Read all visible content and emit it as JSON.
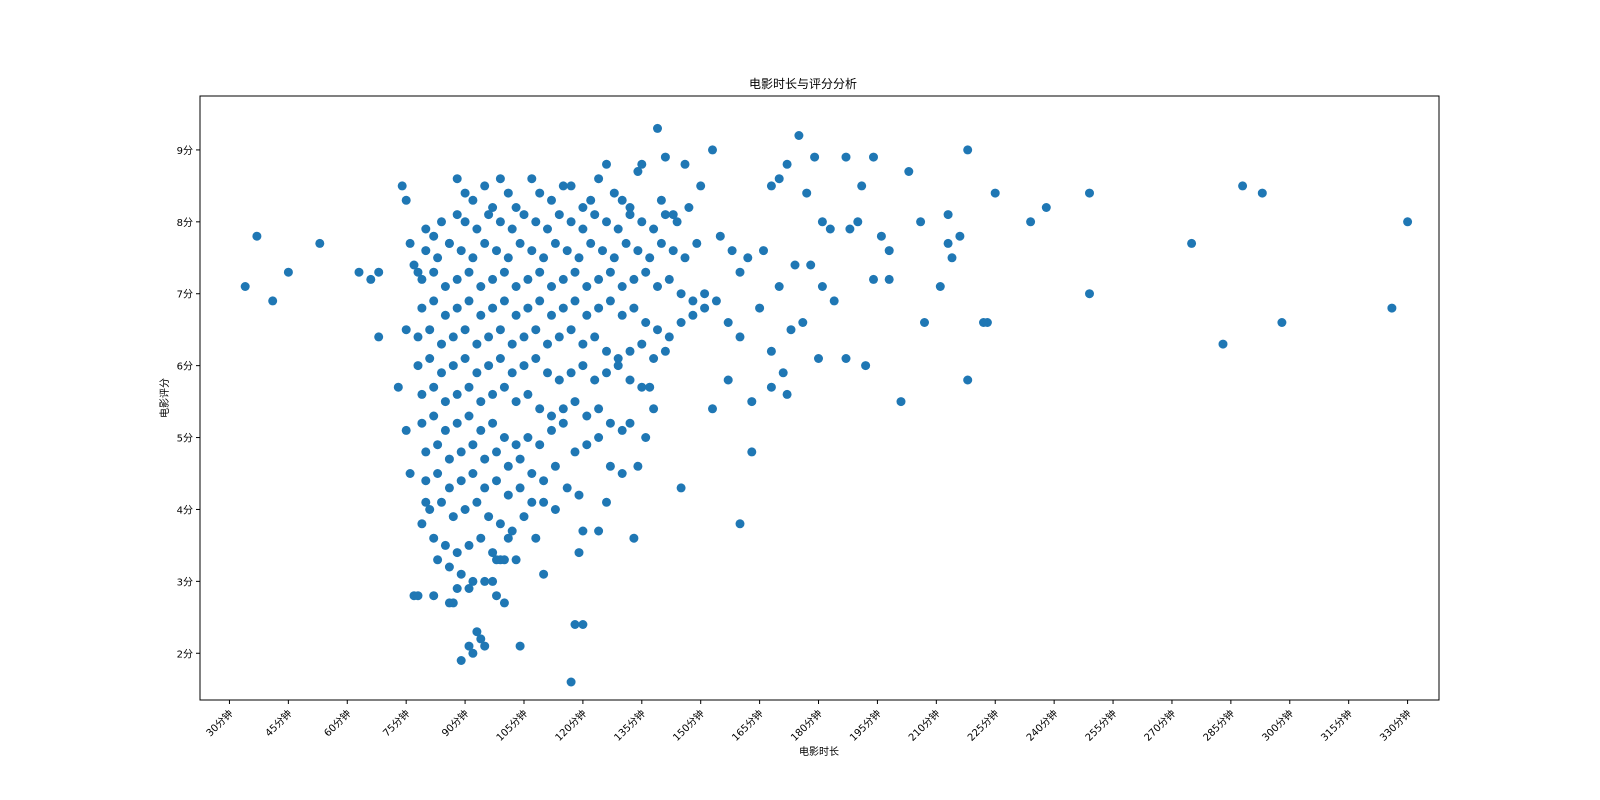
{
  "chart_data": {
    "type": "scatter",
    "title": "电影时长与评分分析",
    "xlabel": "电影时长",
    "ylabel": "电影评分",
    "xlim": [
      22.5,
      338
    ],
    "ylim": [
      1.35,
      9.75
    ],
    "grid": false,
    "legend": "none",
    "marker_color": "#1f77b4",
    "x_ticks": [
      30,
      45,
      60,
      75,
      90,
      105,
      120,
      135,
      150,
      165,
      180,
      195,
      210,
      225,
      240,
      255,
      270,
      285,
      300,
      315,
      330
    ],
    "x_tick_labels": [
      "30分钟",
      "45分钟",
      "60分钟",
      "75分钟",
      "90分钟",
      "105分钟",
      "120分钟",
      "135分钟",
      "150分钟",
      "165分钟",
      "180分钟",
      "195分钟",
      "210分钟",
      "225分钟",
      "240分钟",
      "255分钟",
      "270分钟",
      "285分钟",
      "300分钟",
      "315分钟",
      "330分钟"
    ],
    "y_ticks": [
      2,
      3,
      4,
      5,
      6,
      7,
      8,
      9
    ],
    "y_tick_labels": [
      "2分",
      "3分",
      "4分",
      "5分",
      "6分",
      "7分",
      "8分",
      "9分"
    ],
    "points": [
      [
        34,
        7.1
      ],
      [
        37,
        7.8
      ],
      [
        41,
        6.9
      ],
      [
        45,
        7.3
      ],
      [
        53,
        7.7
      ],
      [
        63,
        7.3
      ],
      [
        66,
        7.2
      ],
      [
        68,
        7.3
      ],
      [
        74,
        8.5
      ],
      [
        75,
        8.3
      ],
      [
        68,
        6.4
      ],
      [
        76,
        7.7
      ],
      [
        77,
        7.4
      ],
      [
        78,
        7.3
      ],
      [
        75,
        6.5
      ],
      [
        73,
        5.7
      ],
      [
        75,
        5.1
      ],
      [
        76,
        4.5
      ],
      [
        77,
        2.8
      ],
      [
        78,
        2.8
      ],
      [
        82,
        2.8
      ],
      [
        80,
        4.1
      ],
      [
        79,
        3.8
      ],
      [
        86,
        2.7
      ],
      [
        87,
        2.7
      ],
      [
        89,
        1.9
      ],
      [
        91,
        2.1
      ],
      [
        92,
        2.0
      ],
      [
        93,
        2.3
      ],
      [
        94,
        2.2
      ],
      [
        95,
        2.1
      ],
      [
        98,
        2.8
      ],
      [
        100,
        2.7
      ],
      [
        104,
        2.1
      ],
      [
        97,
        3.0
      ],
      [
        99,
        3.3
      ],
      [
        101,
        3.6
      ],
      [
        103,
        3.3
      ],
      [
        110,
        3.1
      ],
      [
        118,
        2.4
      ],
      [
        120,
        2.4
      ],
      [
        119,
        3.4
      ],
      [
        120,
        3.7
      ],
      [
        124,
        3.7
      ],
      [
        133,
        3.6
      ],
      [
        126,
        4.1
      ],
      [
        134,
        4.6
      ],
      [
        145,
        4.3
      ],
      [
        160,
        3.8
      ],
      [
        163,
        4.8
      ],
      [
        153,
        5.4
      ],
      [
        157,
        5.8
      ],
      [
        163,
        5.5
      ],
      [
        168,
        5.7
      ],
      [
        117,
        1.6
      ],
      [
        134,
        8.7
      ],
      [
        135,
        8.8
      ],
      [
        139,
        9.3
      ],
      [
        141,
        8.9
      ],
      [
        146,
        8.8
      ],
      [
        153,
        9.0
      ],
      [
        150,
        8.5
      ],
      [
        140,
        8.3
      ],
      [
        143,
        8.1
      ],
      [
        147,
        8.2
      ],
      [
        155,
        7.8
      ],
      [
        158,
        7.6
      ],
      [
        160,
        7.3
      ],
      [
        162,
        7.5
      ],
      [
        166,
        7.6
      ],
      [
        168,
        8.5
      ],
      [
        170,
        8.6
      ],
      [
        172,
        8.8
      ],
      [
        175,
        9.2
      ],
      [
        177,
        8.4
      ],
      [
        179,
        8.9
      ],
      [
        181,
        8.0
      ],
      [
        183,
        7.9
      ],
      [
        187,
        8.9
      ],
      [
        188,
        7.9
      ],
      [
        190,
        8.0
      ],
      [
        191,
        8.5
      ],
      [
        194,
        8.9
      ],
      [
        196,
        7.8
      ],
      [
        198,
        7.6
      ],
      [
        203,
        8.7
      ],
      [
        206,
        8.0
      ],
      [
        211,
        7.1
      ],
      [
        213,
        7.7
      ],
      [
        214,
        7.5
      ],
      [
        216,
        7.8
      ],
      [
        218,
        9.0
      ],
      [
        223,
        6.6
      ],
      [
        225,
        8.4
      ],
      [
        234,
        8.0
      ],
      [
        238,
        8.2
      ],
      [
        249,
        8.4
      ],
      [
        249,
        7.0
      ],
      [
        213,
        8.1
      ],
      [
        207,
        6.6
      ],
      [
        201,
        5.5
      ],
      [
        198,
        7.2
      ],
      [
        194,
        7.2
      ],
      [
        192,
        6.0
      ],
      [
        187,
        6.1
      ],
      [
        184,
        6.9
      ],
      [
        181,
        7.1
      ],
      [
        180,
        6.1
      ],
      [
        176,
        6.6
      ],
      [
        173,
        6.5
      ],
      [
        170,
        7.1
      ],
      [
        165,
        6.8
      ],
      [
        168,
        6.2
      ],
      [
        171,
        5.9
      ],
      [
        172,
        5.6
      ],
      [
        178,
        7.4
      ],
      [
        174,
        7.4
      ],
      [
        218,
        5.8
      ],
      [
        222,
        6.6
      ],
      [
        275,
        7.7
      ],
      [
        283,
        6.3
      ],
      [
        288,
        8.5
      ],
      [
        293,
        8.4
      ],
      [
        298,
        6.6
      ],
      [
        326,
        6.8
      ],
      [
        330,
        8.0
      ],
      [
        88,
        8.6
      ],
      [
        90,
        8.4
      ],
      [
        92,
        8.3
      ],
      [
        95,
        8.5
      ],
      [
        97,
        8.2
      ],
      [
        99,
        8.6
      ],
      [
        101,
        8.4
      ],
      [
        103,
        8.2
      ],
      [
        107,
        8.6
      ],
      [
        109,
        8.4
      ],
      [
        112,
        8.3
      ],
      [
        115,
        8.5
      ],
      [
        117,
        8.5
      ],
      [
        120,
        8.2
      ],
      [
        122,
        8.3
      ],
      [
        124,
        8.6
      ],
      [
        126,
        8.8
      ],
      [
        128,
        8.4
      ],
      [
        130,
        8.3
      ],
      [
        132,
        8.2
      ],
      [
        80,
        7.9
      ],
      [
        82,
        7.8
      ],
      [
        84,
        8.0
      ],
      [
        86,
        7.7
      ],
      [
        88,
        8.1
      ],
      [
        90,
        8.0
      ],
      [
        93,
        7.9
      ],
      [
        96,
        8.1
      ],
      [
        99,
        8.0
      ],
      [
        102,
        7.9
      ],
      [
        105,
        8.1
      ],
      [
        108,
        8.0
      ],
      [
        111,
        7.9
      ],
      [
        114,
        8.1
      ],
      [
        117,
        8.0
      ],
      [
        120,
        7.9
      ],
      [
        123,
        8.1
      ],
      [
        126,
        8.0
      ],
      [
        129,
        7.9
      ],
      [
        132,
        8.1
      ],
      [
        135,
        8.0
      ],
      [
        138,
        7.9
      ],
      [
        141,
        8.1
      ],
      [
        144,
        8.0
      ],
      [
        80,
        7.6
      ],
      [
        83,
        7.5
      ],
      [
        86,
        7.7
      ],
      [
        89,
        7.6
      ],
      [
        92,
        7.5
      ],
      [
        95,
        7.7
      ],
      [
        98,
        7.6
      ],
      [
        101,
        7.5
      ],
      [
        104,
        7.7
      ],
      [
        107,
        7.6
      ],
      [
        110,
        7.5
      ],
      [
        113,
        7.7
      ],
      [
        116,
        7.6
      ],
      [
        119,
        7.5
      ],
      [
        122,
        7.7
      ],
      [
        125,
        7.6
      ],
      [
        128,
        7.5
      ],
      [
        131,
        7.7
      ],
      [
        134,
        7.6
      ],
      [
        137,
        7.5
      ],
      [
        140,
        7.7
      ],
      [
        143,
        7.6
      ],
      [
        146,
        7.5
      ],
      [
        149,
        7.7
      ],
      [
        79,
        7.2
      ],
      [
        82,
        7.3
      ],
      [
        85,
        7.1
      ],
      [
        88,
        7.2
      ],
      [
        91,
        7.3
      ],
      [
        94,
        7.1
      ],
      [
        97,
        7.2
      ],
      [
        100,
        7.3
      ],
      [
        103,
        7.1
      ],
      [
        106,
        7.2
      ],
      [
        109,
        7.3
      ],
      [
        112,
        7.1
      ],
      [
        115,
        7.2
      ],
      [
        118,
        7.3
      ],
      [
        121,
        7.1
      ],
      [
        124,
        7.2
      ],
      [
        127,
        7.3
      ],
      [
        130,
        7.1
      ],
      [
        133,
        7.2
      ],
      [
        136,
        7.3
      ],
      [
        139,
        7.1
      ],
      [
        142,
        7.2
      ],
      [
        145,
        7.0
      ],
      [
        148,
        6.9
      ],
      [
        151,
        7.0
      ],
      [
        79,
        6.8
      ],
      [
        82,
        6.9
      ],
      [
        85,
        6.7
      ],
      [
        88,
        6.8
      ],
      [
        91,
        6.9
      ],
      [
        94,
        6.7
      ],
      [
        97,
        6.8
      ],
      [
        100,
        6.9
      ],
      [
        103,
        6.7
      ],
      [
        106,
        6.8
      ],
      [
        109,
        6.9
      ],
      [
        112,
        6.7
      ],
      [
        115,
        6.8
      ],
      [
        118,
        6.9
      ],
      [
        121,
        6.7
      ],
      [
        124,
        6.8
      ],
      [
        127,
        6.9
      ],
      [
        130,
        6.7
      ],
      [
        133,
        6.8
      ],
      [
        136,
        6.6
      ],
      [
        139,
        6.5
      ],
      [
        142,
        6.4
      ],
      [
        145,
        6.6
      ],
      [
        148,
        6.7
      ],
      [
        151,
        6.8
      ],
      [
        154,
        6.9
      ],
      [
        157,
        6.6
      ],
      [
        160,
        6.4
      ],
      [
        78,
        6.4
      ],
      [
        81,
        6.5
      ],
      [
        84,
        6.3
      ],
      [
        87,
        6.4
      ],
      [
        90,
        6.5
      ],
      [
        93,
        6.3
      ],
      [
        96,
        6.4
      ],
      [
        99,
        6.5
      ],
      [
        102,
        6.3
      ],
      [
        105,
        6.4
      ],
      [
        108,
        6.5
      ],
      [
        111,
        6.3
      ],
      [
        114,
        6.4
      ],
      [
        117,
        6.5
      ],
      [
        120,
        6.3
      ],
      [
        123,
        6.4
      ],
      [
        126,
        6.2
      ],
      [
        129,
        6.1
      ],
      [
        132,
        6.2
      ],
      [
        135,
        6.3
      ],
      [
        138,
        6.1
      ],
      [
        141,
        6.2
      ],
      [
        78,
        6.0
      ],
      [
        81,
        6.1
      ],
      [
        84,
        5.9
      ],
      [
        87,
        6.0
      ],
      [
        90,
        6.1
      ],
      [
        93,
        5.9
      ],
      [
        96,
        6.0
      ],
      [
        99,
        6.1
      ],
      [
        102,
        5.9
      ],
      [
        105,
        6.0
      ],
      [
        108,
        6.1
      ],
      [
        111,
        5.9
      ],
      [
        114,
        5.8
      ],
      [
        117,
        5.9
      ],
      [
        120,
        6.0
      ],
      [
        123,
        5.8
      ],
      [
        126,
        5.9
      ],
      [
        129,
        6.0
      ],
      [
        132,
        5.8
      ],
      [
        135,
        5.7
      ],
      [
        137,
        5.7
      ],
      [
        79,
        5.6
      ],
      [
        82,
        5.7
      ],
      [
        85,
        5.5
      ],
      [
        88,
        5.6
      ],
      [
        91,
        5.7
      ],
      [
        94,
        5.5
      ],
      [
        97,
        5.6
      ],
      [
        100,
        5.7
      ],
      [
        103,
        5.5
      ],
      [
        106,
        5.6
      ],
      [
        109,
        5.4
      ],
      [
        112,
        5.3
      ],
      [
        115,
        5.4
      ],
      [
        118,
        5.5
      ],
      [
        121,
        5.3
      ],
      [
        124,
        5.4
      ],
      [
        127,
        5.2
      ],
      [
        130,
        5.1
      ],
      [
        132,
        5.2
      ],
      [
        136,
        5.0
      ],
      [
        138,
        5.4
      ],
      [
        79,
        5.2
      ],
      [
        82,
        5.3
      ],
      [
        85,
        5.1
      ],
      [
        88,
        5.2
      ],
      [
        91,
        5.3
      ],
      [
        94,
        5.1
      ],
      [
        97,
        5.2
      ],
      [
        100,
        5.0
      ],
      [
        103,
        4.9
      ],
      [
        106,
        5.0
      ],
      [
        109,
        4.9
      ],
      [
        112,
        5.1
      ],
      [
        115,
        5.2
      ],
      [
        118,
        4.8
      ],
      [
        121,
        4.9
      ],
      [
        124,
        5.0
      ],
      [
        127,
        4.6
      ],
      [
        130,
        4.5
      ],
      [
        80,
        4.8
      ],
      [
        83,
        4.9
      ],
      [
        86,
        4.7
      ],
      [
        89,
        4.8
      ],
      [
        92,
        4.9
      ],
      [
        95,
        4.7
      ],
      [
        98,
        4.8
      ],
      [
        101,
        4.6
      ],
      [
        104,
        4.7
      ],
      [
        107,
        4.5
      ],
      [
        110,
        4.4
      ],
      [
        113,
        4.6
      ],
      [
        116,
        4.3
      ],
      [
        119,
        4.2
      ],
      [
        80,
        4.4
      ],
      [
        83,
        4.5
      ],
      [
        86,
        4.3
      ],
      [
        89,
        4.4
      ],
      [
        92,
        4.5
      ],
      [
        95,
        4.3
      ],
      [
        98,
        4.4
      ],
      [
        101,
        4.2
      ],
      [
        104,
        4.3
      ],
      [
        107,
        4.1
      ],
      [
        110,
        4.1
      ],
      [
        113,
        4.0
      ],
      [
        81,
        4.0
      ],
      [
        84,
        4.1
      ],
      [
        87,
        3.9
      ],
      [
        90,
        4.0
      ],
      [
        93,
        4.1
      ],
      [
        96,
        3.9
      ],
      [
        99,
        3.8
      ],
      [
        102,
        3.7
      ],
      [
        105,
        3.9
      ],
      [
        108,
        3.6
      ],
      [
        82,
        3.6
      ],
      [
        85,
        3.5
      ],
      [
        88,
        3.4
      ],
      [
        91,
        3.5
      ],
      [
        94,
        3.6
      ],
      [
        97,
        3.4
      ],
      [
        100,
        3.3
      ],
      [
        83,
        3.3
      ],
      [
        86,
        3.2
      ],
      [
        89,
        3.1
      ],
      [
        92,
        3.0
      ],
      [
        95,
        3.0
      ],
      [
        98,
        3.3
      ],
      [
        91,
        2.9
      ],
      [
        88,
        2.9
      ]
    ]
  }
}
